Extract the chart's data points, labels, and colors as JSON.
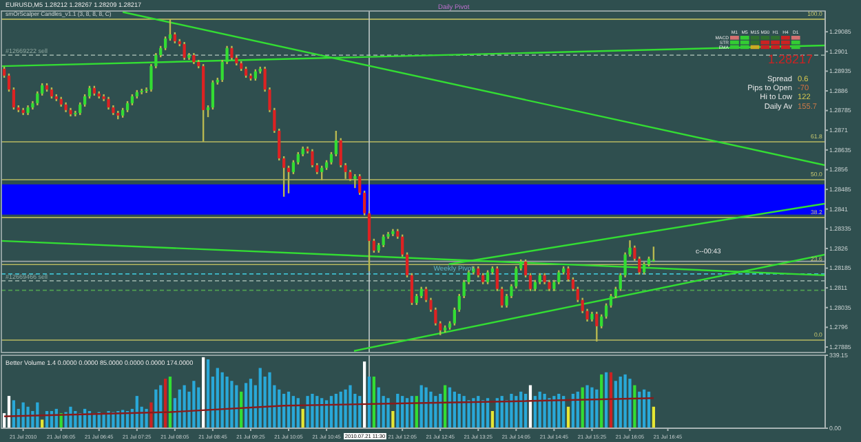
{
  "chart_data": [
    {
      "type": "candlestick",
      "title": "EURUSD,M5 1.28212 1.28267 1.28209 1.28217",
      "subtitle": "smOrScalper Candles_v1.1 (3, 8, 8, 8, C)",
      "x": [
        "2010-07-21T05:05",
        "2010-07-21T05:10",
        "2010-07-21T05:15",
        "2010-07-21T05:20",
        "2010-07-21T05:25",
        "2010-07-21T05:30",
        "2010-07-21T05:35",
        "2010-07-21T05:40",
        "2010-07-21T05:45",
        "2010-07-21T05:50",
        "2010-07-21T05:55",
        "2010-07-21T06:00",
        "2010-07-21T06:05",
        "2010-07-21T06:10",
        "2010-07-21T06:15",
        "2010-07-21T06:20",
        "2010-07-21T06:25",
        "2010-07-21T06:30",
        "2010-07-21T06:35",
        "2010-07-21T06:40",
        "2010-07-21T06:45",
        "2010-07-21T06:50",
        "2010-07-21T06:55",
        "2010-07-21T07:00",
        "2010-07-21T07:05",
        "2010-07-21T07:10",
        "2010-07-21T07:15",
        "2010-07-21T07:20",
        "2010-07-21T07:25",
        "2010-07-21T07:30",
        "2010-07-21T07:35",
        "2010-07-21T07:40",
        "2010-07-21T07:45",
        "2010-07-21T07:50",
        "2010-07-21T07:55",
        "2010-07-21T08:00",
        "2010-07-21T08:05",
        "2010-07-21T08:10",
        "2010-07-21T08:15",
        "2010-07-21T08:20",
        "2010-07-21T08:25",
        "2010-07-21T08:30",
        "2010-07-21T08:35",
        "2010-07-21T08:40",
        "2010-07-21T08:45",
        "2010-07-21T08:50",
        "2010-07-21T08:55",
        "2010-07-21T09:00",
        "2010-07-21T09:05",
        "2010-07-21T09:10",
        "2010-07-21T09:15",
        "2010-07-21T09:20",
        "2010-07-21T09:25",
        "2010-07-21T09:30",
        "2010-07-21T09:35",
        "2010-07-21T09:40",
        "2010-07-21T09:45",
        "2010-07-21T09:50",
        "2010-07-21T09:55",
        "2010-07-21T10:00",
        "2010-07-21T10:05",
        "2010-07-21T10:10",
        "2010-07-21T10:15",
        "2010-07-21T10:20",
        "2010-07-21T10:25",
        "2010-07-21T10:30",
        "2010-07-21T10:35",
        "2010-07-21T10:40",
        "2010-07-21T10:45",
        "2010-07-21T10:50",
        "2010-07-21T10:55",
        "2010-07-21T11:00",
        "2010-07-21T11:05",
        "2010-07-21T11:10",
        "2010-07-21T11:15",
        "2010-07-21T11:20",
        "2010-07-21T11:25",
        "2010-07-21T11:30",
        "2010-07-21T11:35",
        "2010-07-21T11:40",
        "2010-07-21T11:45",
        "2010-07-21T11:50",
        "2010-07-21T11:55",
        "2010-07-21T12:00",
        "2010-07-21T12:05",
        "2010-07-21T12:10",
        "2010-07-21T12:15",
        "2010-07-21T12:20",
        "2010-07-21T12:25",
        "2010-07-21T12:30",
        "2010-07-21T12:35",
        "2010-07-21T12:40",
        "2010-07-21T12:45",
        "2010-07-21T12:50",
        "2010-07-21T12:55",
        "2010-07-21T13:00",
        "2010-07-21T13:05",
        "2010-07-21T13:10",
        "2010-07-21T13:15",
        "2010-07-21T13:20",
        "2010-07-21T13:25",
        "2010-07-21T13:30",
        "2010-07-21T13:35",
        "2010-07-21T13:40",
        "2010-07-21T13:45",
        "2010-07-21T13:50",
        "2010-07-21T13:55",
        "2010-07-21T14:00",
        "2010-07-21T14:05",
        "2010-07-21T14:10",
        "2010-07-21T14:15",
        "2010-07-21T14:20",
        "2010-07-21T14:25",
        "2010-07-21T14:30",
        "2010-07-21T14:35",
        "2010-07-21T14:40",
        "2010-07-21T14:45",
        "2010-07-21T14:50",
        "2010-07-21T14:55",
        "2010-07-21T15:00",
        "2010-07-21T15:05",
        "2010-07-21T15:10",
        "2010-07-21T15:15",
        "2010-07-21T15:20",
        "2010-07-21T15:25",
        "2010-07-21T15:30",
        "2010-07-21T15:35",
        "2010-07-21T15:40",
        "2010-07-21T15:45",
        "2010-07-21T15:50",
        "2010-07-21T15:55",
        "2010-07-21T16:00",
        "2010-07-21T16:05",
        "2010-07-21T16:10",
        "2010-07-21T16:15",
        "2010-07-21T16:20",
        "2010-07-21T16:25",
        "2010-07-21T16:30"
      ],
      "ohlc": [
        [
          1.28944,
          1.28952,
          1.2891,
          1.28918
        ],
        [
          1.28918,
          1.28926,
          1.28857,
          1.28865
        ],
        [
          1.28865,
          1.28873,
          1.28789,
          1.28797
        ],
        [
          1.28797,
          1.28805,
          1.28779,
          1.28787
        ],
        [
          1.28787,
          1.28795,
          1.28768,
          1.28776
        ],
        [
          1.28776,
          1.28805,
          1.28768,
          1.28797
        ],
        [
          1.28797,
          1.28821,
          1.28789,
          1.28813
        ],
        [
          1.28813,
          1.28858,
          1.28805,
          1.2885
        ],
        [
          1.2885,
          1.28889,
          1.28842,
          1.28881
        ],
        [
          1.28881,
          1.28889,
          1.28857,
          1.28865
        ],
        [
          1.28865,
          1.28873,
          1.28831,
          1.28839
        ],
        [
          1.28839,
          1.28847,
          1.28821,
          1.28829
        ],
        [
          1.28829,
          1.28837,
          1.288,
          1.28808
        ],
        [
          1.28808,
          1.28816,
          1.28779,
          1.28787
        ],
        [
          1.28787,
          1.28795,
          1.28763,
          1.28771
        ],
        [
          1.28771,
          1.28784,
          1.28763,
          1.28776
        ],
        [
          1.28776,
          1.28816,
          1.28768,
          1.28808
        ],
        [
          1.28808,
          1.28847,
          1.288,
          1.28839
        ],
        [
          1.28839,
          1.28879,
          1.28831,
          1.28871
        ],
        [
          1.28871,
          1.28879,
          1.28842,
          1.2885
        ],
        [
          1.2885,
          1.28858,
          1.28831,
          1.28839
        ],
        [
          1.28839,
          1.28847,
          1.28821,
          1.28829
        ],
        [
          1.28829,
          1.28837,
          1.28789,
          1.28797
        ],
        [
          1.28797,
          1.28805,
          1.28768,
          1.28776
        ],
        [
          1.28776,
          1.28784,
          1.28752,
          1.28766
        ],
        [
          1.28766,
          1.28795,
          1.28758,
          1.28787
        ],
        [
          1.28787,
          1.28821,
          1.28779,
          1.28813
        ],
        [
          1.28813,
          1.28847,
          1.28805,
          1.28839
        ],
        [
          1.28839,
          1.28863,
          1.28831,
          1.28855
        ],
        [
          1.28855,
          1.28868,
          1.28847,
          1.2886
        ],
        [
          1.2886,
          1.28873,
          1.28852,
          1.28865
        ],
        [
          1.28865,
          1.28962,
          1.28857,
          1.28954
        ],
        [
          1.28954,
          1.29004,
          1.28946,
          1.28996
        ],
        [
          1.28996,
          1.29031,
          1.28988,
          1.29023
        ],
        [
          1.29023,
          1.29067,
          1.29015,
          1.29059
        ],
        [
          1.29059,
          1.29133,
          1.29051,
          1.29075
        ],
        [
          1.29075,
          1.29083,
          1.29041,
          1.29049
        ],
        [
          1.29049,
          1.29057,
          1.2903,
          1.29038
        ],
        [
          1.29038,
          1.29046,
          1.28978,
          1.28986
        ],
        [
          1.28986,
          1.29004,
          1.28978,
          1.28996
        ],
        [
          1.28996,
          1.29004,
          1.28962,
          1.2897
        ],
        [
          1.2897,
          1.28978,
          1.28946,
          1.28954
        ],
        [
          1.28954,
          1.28962,
          1.28666,
          1.28787
        ],
        [
          1.28787,
          1.28805,
          1.2876,
          1.28797
        ],
        [
          1.28797,
          1.289,
          1.28789,
          1.28892
        ],
        [
          1.28892,
          1.2891,
          1.28884,
          1.28902
        ],
        [
          1.28902,
          1.28978,
          1.28894,
          1.2897
        ],
        [
          1.2897,
          1.29031,
          1.28962,
          1.29023
        ],
        [
          1.29023,
          1.29031,
          1.28978,
          1.28986
        ],
        [
          1.28986,
          1.28994,
          1.28957,
          1.28965
        ],
        [
          1.28965,
          1.28973,
          1.28936,
          1.28944
        ],
        [
          1.28944,
          1.28952,
          1.2891,
          1.28918
        ],
        [
          1.28918,
          1.28926,
          1.28899,
          1.28907
        ],
        [
          1.28907,
          1.28942,
          1.28899,
          1.28934
        ],
        [
          1.28934,
          1.28952,
          1.28926,
          1.28944
        ],
        [
          1.28944,
          1.28952,
          1.28857,
          1.28865
        ],
        [
          1.28865,
          1.28873,
          1.28779,
          1.28787
        ],
        [
          1.28787,
          1.28795,
          1.287,
          1.28708
        ],
        [
          1.28708,
          1.28716,
          1.28595,
          1.28603
        ],
        [
          1.28603,
          1.28611,
          1.28457,
          1.28567
        ],
        [
          1.28567,
          1.28575,
          1.2847,
          1.28551
        ],
        [
          1.28551,
          1.28596,
          1.28543,
          1.28588
        ],
        [
          1.28588,
          1.28627,
          1.2858,
          1.28619
        ],
        [
          1.28619,
          1.28648,
          1.28611,
          1.2864
        ],
        [
          1.2864,
          1.28648,
          1.28622,
          1.2863
        ],
        [
          1.2863,
          1.28638,
          1.28569,
          1.28577
        ],
        [
          1.28577,
          1.28585,
          1.28543,
          1.28551
        ],
        [
          1.28551,
          1.28575,
          1.2852,
          1.28567
        ],
        [
          1.28567,
          1.28596,
          1.28559,
          1.28588
        ],
        [
          1.28588,
          1.28627,
          1.2858,
          1.28619
        ],
        [
          1.28619,
          1.28708,
          1.28611,
          1.28672
        ],
        [
          1.28672,
          1.2868,
          1.28569,
          1.28577
        ],
        [
          1.28577,
          1.28585,
          1.28525,
          1.28551
        ],
        [
          1.28551,
          1.28559,
          1.28517,
          1.28525
        ],
        [
          1.28525,
          1.28543,
          1.2849,
          1.28535
        ],
        [
          1.28535,
          1.28543,
          1.28464,
          1.28472
        ],
        [
          1.28472,
          1.2848,
          1.28386,
          1.28394
        ],
        [
          1.28394,
          1.28402,
          1.28174,
          1.28289
        ],
        [
          1.28289,
          1.28297,
          1.28244,
          1.28252
        ],
        [
          1.28252,
          1.28281,
          1.28244,
          1.28273
        ],
        [
          1.28273,
          1.28313,
          1.28265,
          1.28305
        ],
        [
          1.28305,
          1.28323,
          1.28297,
          1.28315
        ],
        [
          1.28315,
          1.28334,
          1.28307,
          1.28326
        ],
        [
          1.28326,
          1.28334,
          1.28297,
          1.28305
        ],
        [
          1.28305,
          1.28313,
          1.28229,
          1.28237
        ],
        [
          1.28237,
          1.28245,
          1.2815,
          1.28158
        ],
        [
          1.28158,
          1.28166,
          1.28045,
          1.28053
        ],
        [
          1.28053,
          1.28087,
          1.28045,
          1.28079
        ],
        [
          1.28079,
          1.28114,
          1.28071,
          1.28106
        ],
        [
          1.28106,
          1.28114,
          1.28056,
          1.28064
        ],
        [
          1.28064,
          1.28072,
          1.28019,
          1.28027
        ],
        [
          1.28027,
          1.28035,
          1.27967,
          1.27975
        ],
        [
          1.27975,
          1.27983,
          1.2793,
          1.27948
        ],
        [
          1.27948,
          1.27967,
          1.2794,
          1.27959
        ],
        [
          1.27959,
          1.27983,
          1.27951,
          1.27975
        ],
        [
          1.27975,
          1.28035,
          1.27967,
          1.28027
        ],
        [
          1.28027,
          1.28087,
          1.28019,
          1.28079
        ],
        [
          1.28079,
          1.2814,
          1.28071,
          1.28132
        ],
        [
          1.28132,
          1.28177,
          1.28124,
          1.28169
        ],
        [
          1.28169,
          1.28192,
          1.28161,
          1.28184
        ],
        [
          1.28184,
          1.28192,
          1.2815,
          1.28158
        ],
        [
          1.28158,
          1.28166,
          1.28124,
          1.28132
        ],
        [
          1.28132,
          1.28177,
          1.28124,
          1.28169
        ],
        [
          1.28169,
          1.28192,
          1.28161,
          1.28184
        ],
        [
          1.28184,
          1.28192,
          1.28098,
          1.28106
        ],
        [
          1.28106,
          1.28114,
          1.28035,
          1.28043
        ],
        [
          1.28043,
          1.28087,
          1.28035,
          1.28079
        ],
        [
          1.28079,
          1.28124,
          1.28071,
          1.28116
        ],
        [
          1.28116,
          1.28192,
          1.28108,
          1.28184
        ],
        [
          1.28184,
          1.28218,
          1.28176,
          1.2821
        ],
        [
          1.2821,
          1.28218,
          1.2815,
          1.28158
        ],
        [
          1.28158,
          1.28166,
          1.28098,
          1.28106
        ],
        [
          1.28106,
          1.2814,
          1.28098,
          1.28132
        ],
        [
          1.28132,
          1.28166,
          1.28124,
          1.28158
        ],
        [
          1.28158,
          1.28166,
          1.28124,
          1.28132
        ],
        [
          1.28132,
          1.2814,
          1.28098,
          1.28106
        ],
        [
          1.28106,
          1.2814,
          1.28098,
          1.28132
        ],
        [
          1.28132,
          1.28177,
          1.28124,
          1.28169
        ],
        [
          1.28169,
          1.28192,
          1.28161,
          1.28184
        ],
        [
          1.28184,
          1.28192,
          1.28134,
          1.28142
        ],
        [
          1.28142,
          1.2815,
          1.28098,
          1.28106
        ],
        [
          1.28106,
          1.28114,
          1.28056,
          1.28064
        ],
        [
          1.28064,
          1.28072,
          1.28014,
          1.28022
        ],
        [
          1.28022,
          1.2803,
          1.27982,
          1.2799
        ],
        [
          1.2799,
          1.28019,
          1.27982,
          1.28011
        ],
        [
          1.28011,
          1.28019,
          1.27906,
          1.27964
        ],
        [
          1.27964,
          1.28009,
          1.27956,
          1.28001
        ],
        [
          1.28001,
          1.28051,
          1.27993,
          1.28043
        ],
        [
          1.28043,
          1.28087,
          1.28035,
          1.28079
        ],
        [
          1.28079,
          1.28114,
          1.28071,
          1.28106
        ],
        [
          1.28106,
          1.28166,
          1.28098,
          1.28158
        ],
        [
          1.28158,
          1.28245,
          1.2815,
          1.28237
        ],
        [
          1.28237,
          1.28291,
          1.28229,
          1.28263
        ],
        [
          1.28263,
          1.28271,
          1.28213,
          1.28221
        ],
        [
          1.28221,
          1.28229,
          1.28161,
          1.28169
        ],
        [
          1.28169,
          1.28208,
          1.28161,
          1.282
        ],
        [
          1.282,
          1.28229,
          1.28192,
          1.28221
        ],
        [
          1.28212,
          1.28267,
          1.28209,
          1.28217
        ]
      ],
      "xlim": [
        "2010-07-21T05:02",
        "2010-07-21T19:31"
      ],
      "ylim": [
        1.27864,
        1.29164
      ],
      "yticks": [
        1.29085,
        1.2901,
        1.28935,
        1.2886,
        1.28785,
        1.2871,
        1.28635,
        1.2856,
        1.28485,
        1.2841,
        1.28335,
        1.2826,
        1.28185,
        1.2811,
        1.28035,
        1.2796,
        1.27885
      ],
      "tick_labels": "y",
      "series": [
        {
          "type": "line",
          "x": [
            "2010-07-21T07:10",
            "2010-07-21T19:31"
          ],
          "values": [
            1.2916,
            1.28577
          ],
          "color": "#33dd33"
        },
        {
          "type": "line",
          "x": [
            "2010-07-21T05:02",
            "2010-07-21T19:31"
          ],
          "values": [
            1.28954,
            1.29033
          ],
          "color": "#33dd33"
        },
        {
          "type": "line",
          "x": [
            "2010-07-21T05:02",
            "2010-07-21T19:31"
          ],
          "values": [
            1.28289,
            1.28158
          ],
          "color": "#33dd33"
        },
        {
          "type": "line",
          "x": [
            "2010-07-21T11:14",
            "2010-07-21T19:31"
          ],
          "values": [
            1.2787,
            1.28237
          ],
          "color": "#33dd33"
        },
        {
          "type": "line",
          "x": [
            "2010-07-21T12:54",
            "2010-07-21T19:31"
          ],
          "values": [
            1.282,
            1.28431
          ],
          "color": "#33dd33"
        }
      ],
      "bands": [
        {
          "axis": "y",
          "from": 1.28389,
          "to": 1.28504,
          "color": "#0000ff"
        }
      ],
      "ref_lines": [
        {
          "axis": "y",
          "value": 1.29133,
          "color": "#b8b860",
          "line_style": "solid"
        },
        {
          "axis": "y",
          "value": 1.28666,
          "color": "#b8b860",
          "line_style": "solid"
        },
        {
          "axis": "y",
          "value": 1.28522,
          "color": "#b8b860",
          "line_style": "solid"
        },
        {
          "axis": "y",
          "value": 1.28378,
          "color": "#b8b860",
          "line_style": "solid"
        },
        {
          "axis": "y",
          "value": 1.28199,
          "color": "#b8b860",
          "line_style": "solid"
        },
        {
          "axis": "y",
          "value": 1.27911,
          "color": "#b8b860",
          "line_style": "solid"
        },
        {
          "axis": "y",
          "value": 1.28996,
          "label": "#12669222 sell",
          "color": "#8fa8a0",
          "line_style": "dashed"
        },
        {
          "axis": "y",
          "value": 1.28137,
          "label": "#12669466 sell",
          "color": "#8fa8a0",
          "line_style": "dashed"
        },
        {
          "axis": "y",
          "value": 1.28163,
          "color": "#40c0d0",
          "line_style": "dashed"
        },
        {
          "axis": "y",
          "value": 1.28101,
          "color": "#50a050",
          "line_style": "dashed"
        },
        {
          "axis": "y",
          "value": 1.28211,
          "color": "#a0a8a8",
          "line_style": "solid"
        },
        {
          "axis": "x",
          "value": "2010-07-21T11:30",
          "color": "#c0c8c8",
          "line_style": "solid"
        }
      ],
      "annotations": [
        {
          "text": "100.0",
          "x": "2010-07-21T19:28",
          "y": 1.29133
        },
        {
          "text": "61.8",
          "x": "2010-07-21T19:28",
          "y": 1.28666
        },
        {
          "text": "50.0",
          "x": "2010-07-21T19:28",
          "y": 1.28522
        },
        {
          "text": "38.2",
          "x": "2010-07-21T19:28",
          "y": 1.28378
        },
        {
          "text": "23.6",
          "x": "2010-07-21T19:28",
          "y": 1.28199
        },
        {
          "text": "0.0",
          "x": "2010-07-21T19:28",
          "y": 1.27911
        },
        {
          "text": "Weekly Pivot",
          "x": "2010-07-21T12:38",
          "y": 1.28163
        },
        "Daily Pivot",
        "c--00:43",
        "Spread",
        "0.6",
        "Pips to Open",
        "-70",
        "Hi to Low",
        "122",
        "Daily Av",
        "155.7",
        "1.28217",
        "MACD",
        "STR",
        "EMA",
        "M1",
        "M5",
        "M15",
        "M30",
        "H1",
        "H4",
        "D1"
      ]
    },
    {
      "type": "bar",
      "title": "Better Volume 1.4 0.0000 0.0000 85.0000 0.0000 0.0000 174.0000",
      "x": [
        "2010-07-21T05:05",
        "2010-07-21T05:10",
        "2010-07-21T05:15",
        "2010-07-21T05:20",
        "2010-07-21T05:25",
        "2010-07-21T05:30",
        "2010-07-21T05:35",
        "2010-07-21T05:40",
        "2010-07-21T05:45",
        "2010-07-21T05:50",
        "2010-07-21T05:55",
        "2010-07-21T06:00",
        "2010-07-21T06:05",
        "2010-07-21T06:10",
        "2010-07-21T06:15",
        "2010-07-21T06:20",
        "2010-07-21T06:25",
        "2010-07-21T06:30",
        "2010-07-21T06:35",
        "2010-07-21T06:40",
        "2010-07-21T06:45",
        "2010-07-21T06:50",
        "2010-07-21T06:55",
        "2010-07-21T07:00",
        "2010-07-21T07:05",
        "2010-07-21T07:10",
        "2010-07-21T07:15",
        "2010-07-21T07:20",
        "2010-07-21T07:25",
        "2010-07-21T07:30",
        "2010-07-21T07:35",
        "2010-07-21T07:40",
        "2010-07-21T07:45",
        "2010-07-21T07:50",
        "2010-07-21T07:55",
        "2010-07-21T08:00",
        "2010-07-21T08:05",
        "2010-07-21T08:10",
        "2010-07-21T08:15",
        "2010-07-21T08:20",
        "2010-07-21T08:25",
        "2010-07-21T08:30",
        "2010-07-21T08:35",
        "2010-07-21T08:40",
        "2010-07-21T08:45",
        "2010-07-21T08:50",
        "2010-07-21T08:55",
        "2010-07-21T09:00",
        "2010-07-21T09:05",
        "2010-07-21T09:10",
        "2010-07-21T09:15",
        "2010-07-21T09:20",
        "2010-07-21T09:25",
        "2010-07-21T09:30",
        "2010-07-21T09:35",
        "2010-07-21T09:40",
        "2010-07-21T09:45",
        "2010-07-21T09:50",
        "2010-07-21T09:55",
        "2010-07-21T10:00",
        "2010-07-21T10:05",
        "2010-07-21T10:10",
        "2010-07-21T10:15",
        "2010-07-21T10:20",
        "2010-07-21T10:25",
        "2010-07-21T10:30",
        "2010-07-21T10:35",
        "2010-07-21T10:40",
        "2010-07-21T10:45",
        "2010-07-21T10:50",
        "2010-07-21T10:55",
        "2010-07-21T11:00",
        "2010-07-21T11:05",
        "2010-07-21T11:10",
        "2010-07-21T11:15",
        "2010-07-21T11:20",
        "2010-07-21T11:25",
        "2010-07-21T11:30",
        "2010-07-21T11:35",
        "2010-07-21T11:40",
        "2010-07-21T11:45",
        "2010-07-21T11:50",
        "2010-07-21T11:55",
        "2010-07-21T12:00",
        "2010-07-21T12:05",
        "2010-07-21T12:10",
        "2010-07-21T12:15",
        "2010-07-21T12:20",
        "2010-07-21T12:25",
        "2010-07-21T12:30",
        "2010-07-21T12:35",
        "2010-07-21T12:40",
        "2010-07-21T12:45",
        "2010-07-21T12:50",
        "2010-07-21T12:55",
        "2010-07-21T13:00",
        "2010-07-21T13:05",
        "2010-07-21T13:10",
        "2010-07-21T13:15",
        "2010-07-21T13:20",
        "2010-07-21T13:25",
        "2010-07-21T13:30",
        "2010-07-21T13:35",
        "2010-07-21T13:40",
        "2010-07-21T13:45",
        "2010-07-21T13:50",
        "2010-07-21T13:55",
        "2010-07-21T14:00",
        "2010-07-21T14:05",
        "2010-07-21T14:10",
        "2010-07-21T14:15",
        "2010-07-21T14:20",
        "2010-07-21T14:25",
        "2010-07-21T14:30",
        "2010-07-21T14:35",
        "2010-07-21T14:40",
        "2010-07-21T14:45",
        "2010-07-21T14:50",
        "2010-07-21T14:55",
        "2010-07-21T15:00",
        "2010-07-21T15:05",
        "2010-07-21T15:10",
        "2010-07-21T15:15",
        "2010-07-21T15:20",
        "2010-07-21T15:25",
        "2010-07-21T15:30",
        "2010-07-21T15:35",
        "2010-07-21T15:40",
        "2010-07-21T15:45",
        "2010-07-21T15:50",
        "2010-07-21T15:55",
        "2010-07-21T16:00",
        "2010-07-21T16:05",
        "2010-07-21T16:10",
        "2010-07-21T16:15",
        "2010-07-21T16:20",
        "2010-07-21T16:25",
        "2010-07-21T16:30"
      ],
      "series": [
        {
          "values": [
            70,
            150,
            130,
            90,
            120,
            100,
            80,
            120,
            40,
            80,
            80,
            90,
            70,
            75,
            100,
            80,
            70,
            90,
            80,
            70,
            75,
            70,
            80,
            75,
            80,
            85,
            80,
            90,
            150,
            100,
            90,
            120,
            180,
            200,
            230,
            240,
            140,
            180,
            200,
            170,
            220,
            190,
            330,
            320,
            240,
            280,
            260,
            240,
            220,
            200,
            170,
            210,
            230,
            200,
            280,
            240,
            260,
            200,
            180,
            160,
            170,
            150,
            140,
            90,
            150,
            160,
            150,
            140,
            130,
            150,
            160,
            170,
            180,
            200,
            160,
            150,
            310,
            240,
            240,
            190,
            150,
            140,
            80,
            160,
            150,
            140,
            150,
            150,
            200,
            190,
            170,
            150,
            160,
            200,
            190,
            170,
            160,
            150,
            130,
            140,
            150,
            130,
            140,
            80,
            140,
            150,
            130,
            160,
            150,
            170,
            160,
            200,
            150,
            170,
            160,
            140,
            150,
            160,
            150,
            100,
            160,
            170,
            190,
            200,
            190,
            180,
            250,
            260,
            260,
            220,
            240,
            250,
            230,
            200,
            170,
            180,
            170,
            100
          ],
          "colors": [
            "#ffffff",
            "#ffffff",
            "#29a8d8",
            "#29a8d8",
            "#29a8d8",
            "#29a8d8",
            "#29a8d8",
            "#29a8d8",
            "#e6e633",
            "#29a8d8",
            "#29a8d8",
            "#29a8d8",
            "#33dd33",
            "#29a8d8",
            "#29a8d8",
            "#29a8d8",
            "#29a8d8",
            "#29a8d8",
            "#29a8d8",
            "#29a8d8",
            "#29a8d8",
            "#29a8d8",
            "#29a8d8",
            "#29a8d8",
            "#29a8d8",
            "#29a8d8",
            "#29a8d8",
            "#29a8d8",
            "#29a8d8",
            "#29a8d8",
            "#29a8d8",
            "#cc2222",
            "#29a8d8",
            "#29a8d8",
            "#cc2222",
            "#33dd33",
            "#29a8d8",
            "#29a8d8",
            "#29a8d8",
            "#29a8d8",
            "#29a8d8",
            "#29a8d8",
            "#ffffff",
            "#29a8d8",
            "#29a8d8",
            "#29a8d8",
            "#29a8d8",
            "#29a8d8",
            "#29a8d8",
            "#29a8d8",
            "#33dd33",
            "#29a8d8",
            "#29a8d8",
            "#29a8d8",
            "#29a8d8",
            "#29a8d8",
            "#29a8d8",
            "#29a8d8",
            "#29a8d8",
            "#29a8d8",
            "#29a8d8",
            "#29a8d8",
            "#29a8d8",
            "#e6e633",
            "#29a8d8",
            "#29a8d8",
            "#29a8d8",
            "#29a8d8",
            "#29a8d8",
            "#29a8d8",
            "#29a8d8",
            "#29a8d8",
            "#29a8d8",
            "#29a8d8",
            "#29a8d8",
            "#29a8d8",
            "#ffffff",
            "#29a8d8",
            "#33dd33",
            "#29a8d8",
            "#29a8d8",
            "#29a8d8",
            "#e6e633",
            "#29a8d8",
            "#29a8d8",
            "#29a8d8",
            "#29a8d8",
            "#33dd33",
            "#29a8d8",
            "#29a8d8",
            "#29a8d8",
            "#29a8d8",
            "#29a8d8",
            "#33dd33",
            "#29a8d8",
            "#29a8d8",
            "#29a8d8",
            "#29a8d8",
            "#29a8d8",
            "#29a8d8",
            "#29a8d8",
            "#29a8d8",
            "#29a8d8",
            "#e6e633",
            "#29a8d8",
            "#29a8d8",
            "#29a8d8",
            "#29a8d8",
            "#29a8d8",
            "#29a8d8",
            "#29a8d8",
            "#ffffff",
            "#29a8d8",
            "#29a8d8",
            "#29a8d8",
            "#29a8d8",
            "#29a8d8",
            "#29a8d8",
            "#29a8d8",
            "#e6e633",
            "#29a8d8",
            "#29a8d8",
            "#33dd33",
            "#29a8d8",
            "#29a8d8",
            "#29a8d8",
            "#33dd33",
            "#29a8d8",
            "#cc2222",
            "#29a8d8",
            "#29a8d8",
            "#29a8d8",
            "#29a8d8",
            "#33dd33",
            "#29a8d8",
            "#29a8d8",
            "#29a8d8",
            "#e6e633"
          ]
        },
        {
          "type": "line",
          "x": [
            "2010-07-21T05:05",
            "2010-07-21T08:00",
            "2010-07-21T10:00",
            "2010-07-21T12:00",
            "2010-07-21T14:00",
            "2010-07-21T16:30"
          ],
          "values": [
            55,
            75,
            105,
            115,
            125,
            140
          ],
          "color": "#8b1a1a"
        }
      ],
      "xlim": [
        "2010-07-21T05:02",
        "2010-07-21T19:31"
      ],
      "ylim": [
        0,
        339.15
      ],
      "yticks": [
        339.15,
        {
          "value": 0,
          "label": "0.00"
        }
      ],
      "xticks": [
        {
          "value": "2010-07-21T05:25",
          "label": "21 Jul 2010"
        },
        {
          "value": "2010-07-21T06:05",
          "label": "21 Jul 06:05"
        },
        {
          "value": "2010-07-21T06:45",
          "label": "21 Jul 06:45"
        },
        {
          "value": "2010-07-21T07:25",
          "label": "21 Jul 07:25"
        },
        {
          "value": "2010-07-21T08:05",
          "label": "21 Jul 08:05"
        },
        {
          "value": "2010-07-21T08:45",
          "label": "21 Jul 08:45"
        },
        {
          "value": "2010-07-21T09:25",
          "label": "21 Jul 09:25"
        },
        {
          "value": "2010-07-21T10:05",
          "label": "21 Jul 10:05"
        },
        {
          "value": "2010-07-21T10:45",
          "label": "21 Jul 10:45"
        },
        {
          "value": "2010-07-21T12:05",
          "label": "21 Jul 12:05"
        },
        {
          "value": "2010-07-21T12:45",
          "label": "21 Jul 12:45"
        },
        {
          "value": "2010-07-21T13:25",
          "label": "21 Jul 13:25"
        },
        {
          "value": "2010-07-21T14:05",
          "label": "21 Jul 14:05"
        },
        {
          "value": "2010-07-21T14:45",
          "label": "21 Jul 14:45"
        },
        {
          "value": "2010-07-21T15:25",
          "label": "21 Jul 15:25"
        },
        {
          "value": "2010-07-21T16:05",
          "label": "21 Jul 16:05"
        },
        {
          "value": "2010-07-21T16:45",
          "label": "21 Jul 16:45"
        }
      ],
      "ref_lines": [
        {
          "axis": "x",
          "value": "2010-07-21T11:30",
          "label": "2010.07.21 11:30",
          "color": "#c0c8c8",
          "line_style": "solid"
        }
      ]
    }
  ]
}
